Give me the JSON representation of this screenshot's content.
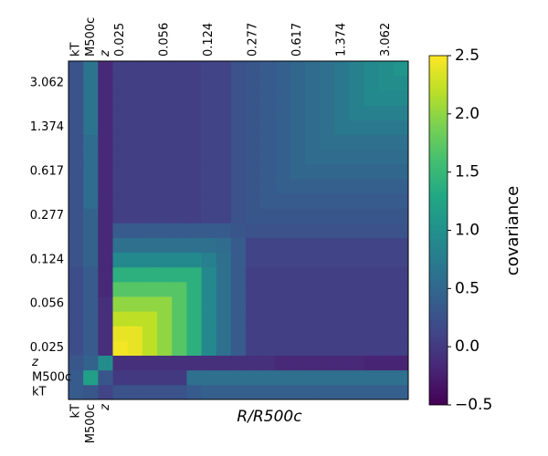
{
  "chart_data": {
    "type": "heatmap",
    "categories": [
      "kT",
      "M500c",
      "z",
      "0.025",
      null,
      null,
      "0.056",
      null,
      null,
      "0.124",
      null,
      null,
      "0.277",
      null,
      null,
      "0.617",
      null,
      null,
      "1.374",
      null,
      null,
      "3.062",
      null
    ],
    "xlabel": "R/R500c",
    "colorbar_label": "covariance",
    "colormap": "viridis",
    "clim": [
      -0.5,
      2.5
    ],
    "cticks": [
      {
        "value": -0.5,
        "label": "−0.5"
      },
      {
        "value": 0,
        "label": "0.0"
      },
      0.5,
      {
        "value": 1,
        "label": "1.0"
      },
      1.5,
      {
        "value": 2,
        "label": "2.0"
      },
      2.5
    ],
    "z": [
      [
        0.35,
        0.3,
        0.1,
        0.25,
        0.25,
        0.25,
        0.25,
        0.25,
        0.35,
        0.4,
        0.4,
        0.4,
        0.4,
        0.4,
        0.4,
        0.4,
        0.4,
        0.4,
        0.4,
        0.4,
        0.4,
        0.4,
        0.4
      ],
      [
        0.35,
        1.2,
        0.3,
        0.0,
        0.0,
        0.0,
        0.0,
        0.0,
        0.6,
        0.6,
        0.6,
        0.6,
        0.6,
        0.6,
        0.6,
        0.6,
        0.6,
        0.6,
        0.6,
        0.6,
        0.6,
        0.6,
        0.6
      ],
      [
        0.3,
        0.45,
        0.95,
        -0.1,
        -0.1,
        -0.1,
        -0.1,
        -0.1,
        -0.1,
        -0.1,
        -0.1,
        -0.1,
        -0.1,
        -0.1,
        -0.15,
        -0.15,
        -0.15,
        -0.15,
        -0.15,
        -0.15,
        -0.2,
        -0.2,
        -0.2
      ],
      [
        0.2,
        0.35,
        -0.1,
        2.45,
        2.4,
        2.2,
        2.0,
        1.7,
        1.4,
        0.9,
        0.6,
        0.35,
        0.05,
        0.05,
        0.05,
        0.05,
        0.05,
        0.05,
        0.05,
        0.05,
        0.05,
        0.05,
        0.05
      ],
      [
        0.2,
        0.35,
        -0.1,
        2.4,
        2.4,
        2.2,
        2.0,
        1.7,
        1.4,
        0.9,
        0.6,
        0.35,
        0.05,
        0.05,
        0.05,
        0.05,
        0.05,
        0.05,
        0.05,
        0.05,
        0.05,
        0.05,
        0.05
      ],
      [
        0.2,
        0.35,
        -0.1,
        2.2,
        2.2,
        2.2,
        2.0,
        1.7,
        1.4,
        0.9,
        0.6,
        0.35,
        0.05,
        0.05,
        0.05,
        0.05,
        0.05,
        0.05,
        0.05,
        0.05,
        0.05,
        0.05,
        0.05
      ],
      [
        0.2,
        0.35,
        -0.1,
        2.0,
        2.0,
        2.0,
        2.0,
        1.7,
        1.4,
        0.9,
        0.6,
        0.35,
        0.05,
        0.05,
        0.05,
        0.05,
        0.05,
        0.05,
        0.05,
        0.05,
        0.05,
        0.05,
        0.05
      ],
      [
        0.2,
        0.35,
        -0.15,
        1.7,
        1.7,
        1.7,
        1.7,
        1.7,
        1.4,
        0.9,
        0.6,
        0.35,
        0.05,
        0.05,
        0.05,
        0.05,
        0.05,
        0.05,
        0.05,
        0.05,
        0.05,
        0.05,
        0.05
      ],
      [
        0.2,
        0.35,
        -0.15,
        1.4,
        1.4,
        1.4,
        1.4,
        1.4,
        1.4,
        0.9,
        0.6,
        0.35,
        0.05,
        0.05,
        0.05,
        0.05,
        0.05,
        0.05,
        0.05,
        0.05,
        0.05,
        0.05,
        0.05
      ],
      [
        0.25,
        0.45,
        -0.15,
        0.9,
        0.9,
        0.9,
        0.9,
        0.9,
        0.9,
        0.8,
        0.6,
        0.35,
        0.1,
        0.1,
        0.1,
        0.1,
        0.1,
        0.1,
        0.1,
        0.1,
        0.1,
        0.1,
        0.1
      ],
      [
        0.25,
        0.45,
        -0.15,
        0.6,
        0.6,
        0.6,
        0.6,
        0.6,
        0.6,
        0.6,
        0.55,
        0.35,
        0.1,
        0.1,
        0.1,
        0.1,
        0.1,
        0.1,
        0.1,
        0.1,
        0.1,
        0.1,
        0.1
      ],
      [
        0.25,
        0.45,
        -0.15,
        0.35,
        0.35,
        0.35,
        0.35,
        0.35,
        0.35,
        0.35,
        0.35,
        0.3,
        0.25,
        0.25,
        0.25,
        0.25,
        0.25,
        0.25,
        0.25,
        0.25,
        0.25,
        0.25,
        0.25
      ],
      [
        0.25,
        0.45,
        -0.15,
        0.05,
        0.05,
        0.05,
        0.05,
        0.05,
        0.05,
        0.1,
        0.1,
        0.25,
        0.3,
        0.3,
        0.3,
        0.3,
        0.3,
        0.3,
        0.3,
        0.3,
        0.3,
        0.3,
        0.3
      ],
      [
        0.25,
        0.55,
        -0.15,
        0.05,
        0.05,
        0.05,
        0.05,
        0.05,
        0.05,
        0.1,
        0.1,
        0.25,
        0.3,
        0.35,
        0.35,
        0.35,
        0.35,
        0.35,
        0.35,
        0.35,
        0.35,
        0.35,
        0.35
      ],
      [
        0.25,
        0.55,
        -0.15,
        0.05,
        0.05,
        0.05,
        0.05,
        0.05,
        0.05,
        0.1,
        0.1,
        0.25,
        0.3,
        0.35,
        0.4,
        0.4,
        0.4,
        0.4,
        0.4,
        0.4,
        0.4,
        0.4,
        0.4
      ],
      [
        0.25,
        0.55,
        -0.15,
        0.05,
        0.05,
        0.05,
        0.05,
        0.05,
        0.05,
        0.1,
        0.1,
        0.25,
        0.3,
        0.35,
        0.4,
        0.5,
        0.5,
        0.5,
        0.5,
        0.5,
        0.5,
        0.5,
        0.5
      ],
      [
        0.25,
        0.55,
        -0.15,
        0.05,
        0.05,
        0.05,
        0.05,
        0.05,
        0.05,
        0.1,
        0.1,
        0.25,
        0.3,
        0.35,
        0.4,
        0.5,
        0.55,
        0.55,
        0.55,
        0.55,
        0.55,
        0.55,
        0.55
      ],
      [
        0.25,
        0.55,
        -0.15,
        0.05,
        0.05,
        0.05,
        0.05,
        0.05,
        0.05,
        0.1,
        0.1,
        0.25,
        0.3,
        0.35,
        0.4,
        0.5,
        0.55,
        0.6,
        0.6,
        0.6,
        0.6,
        0.6,
        0.6
      ],
      [
        0.25,
        0.65,
        -0.15,
        0.05,
        0.05,
        0.05,
        0.05,
        0.05,
        0.05,
        0.1,
        0.1,
        0.25,
        0.3,
        0.35,
        0.4,
        0.5,
        0.55,
        0.6,
        0.7,
        0.7,
        0.7,
        0.7,
        0.7
      ],
      [
        0.25,
        0.65,
        -0.15,
        0.05,
        0.05,
        0.05,
        0.05,
        0.05,
        0.05,
        0.1,
        0.1,
        0.25,
        0.3,
        0.35,
        0.4,
        0.5,
        0.55,
        0.6,
        0.7,
        0.8,
        0.8,
        0.8,
        0.8
      ],
      [
        0.25,
        0.65,
        -0.15,
        0.05,
        0.05,
        0.05,
        0.05,
        0.05,
        0.05,
        0.1,
        0.1,
        0.25,
        0.3,
        0.35,
        0.4,
        0.5,
        0.55,
        0.6,
        0.7,
        0.8,
        0.9,
        0.9,
        0.9
      ],
      [
        0.25,
        0.65,
        -0.15,
        0.05,
        0.05,
        0.05,
        0.05,
        0.05,
        0.05,
        0.1,
        0.1,
        0.25,
        0.3,
        0.35,
        0.4,
        0.5,
        0.55,
        0.6,
        0.7,
        0.8,
        0.9,
        0.95,
        0.95
      ],
      [
        0.25,
        0.65,
        -0.15,
        0.05,
        0.05,
        0.05,
        0.05,
        0.05,
        0.05,
        0.1,
        0.1,
        0.25,
        0.3,
        0.35,
        0.4,
        0.5,
        0.55,
        0.6,
        0.7,
        0.8,
        0.9,
        0.95,
        1.05
      ]
    ]
  }
}
